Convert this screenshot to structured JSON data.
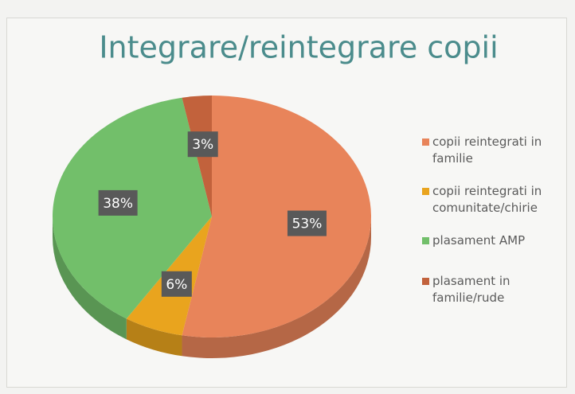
{
  "chart_data": {
    "type": "pie",
    "title": "Integrare/reintegrare copii",
    "categories": [
      "copii reintegrati in familie",
      "copii reintegrati in comunitate/chirie",
      "plasament AMP",
      "plasament in familie/rude"
    ],
    "values": [
      53,
      6,
      38,
      3
    ],
    "value_labels": [
      "53%",
      "6%",
      "38%",
      "3%"
    ],
    "colors": [
      "#e8845a",
      "#e9a41e",
      "#72bf6a",
      "#c2623c"
    ],
    "legend": "right"
  }
}
